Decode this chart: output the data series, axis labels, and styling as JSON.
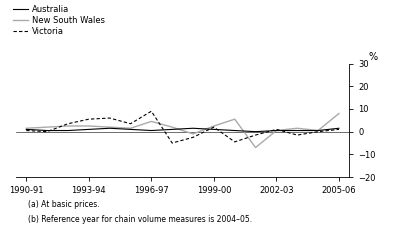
{
  "x_labels": [
    "1990-91",
    "1993-94",
    "1996-97",
    "1999-00",
    "2002-03",
    "2005-06"
  ],
  "x_positions": [
    0,
    3,
    6,
    9,
    12,
    15
  ],
  "australia_x": [
    0,
    1,
    2,
    3,
    4,
    5,
    6,
    7,
    8,
    9,
    10,
    11,
    12,
    13,
    14,
    15
  ],
  "australia_y": [
    1.0,
    0.5,
    0.5,
    1.0,
    1.5,
    1.0,
    0.5,
    1.0,
    1.5,
    1.0,
    0.5,
    0.0,
    0.5,
    0.5,
    0.5,
    1.5
  ],
  "nsw_x": [
    0,
    1,
    2,
    3,
    4,
    5,
    6,
    7,
    8,
    9,
    10,
    11,
    12,
    13,
    14,
    15
  ],
  "nsw_y": [
    1.5,
    2.0,
    2.5,
    2.5,
    2.0,
    1.5,
    4.5,
    2.0,
    -1.0,
    2.5,
    5.5,
    -7.0,
    0.5,
    1.5,
    0.5,
    8.0
  ],
  "victoria_x": [
    0,
    1,
    2,
    3,
    4,
    5,
    6,
    7,
    8,
    9,
    10,
    11,
    12,
    13,
    14,
    15
  ],
  "victoria_y": [
    0.5,
    0.0,
    3.5,
    5.5,
    6.0,
    3.5,
    9.0,
    -5.0,
    -2.5,
    2.0,
    -4.5,
    -1.5,
    1.0,
    -1.5,
    0.0,
    1.0
  ],
  "ylim": [
    -20,
    30
  ],
  "yticks": [
    -20,
    -10,
    0,
    10,
    20,
    30
  ],
  "ylabel": "%",
  "footnote1": "(a) At basic prices.",
  "footnote2": "(b) Reference year for chain volume measures is 2004–05.",
  "legend_australia": "Australia",
  "legend_nsw": "New South Wales",
  "legend_victoria": "Victoria",
  "australia_color": "#000000",
  "nsw_color": "#aaaaaa",
  "victoria_color": "#000000",
  "background_color": "#ffffff"
}
